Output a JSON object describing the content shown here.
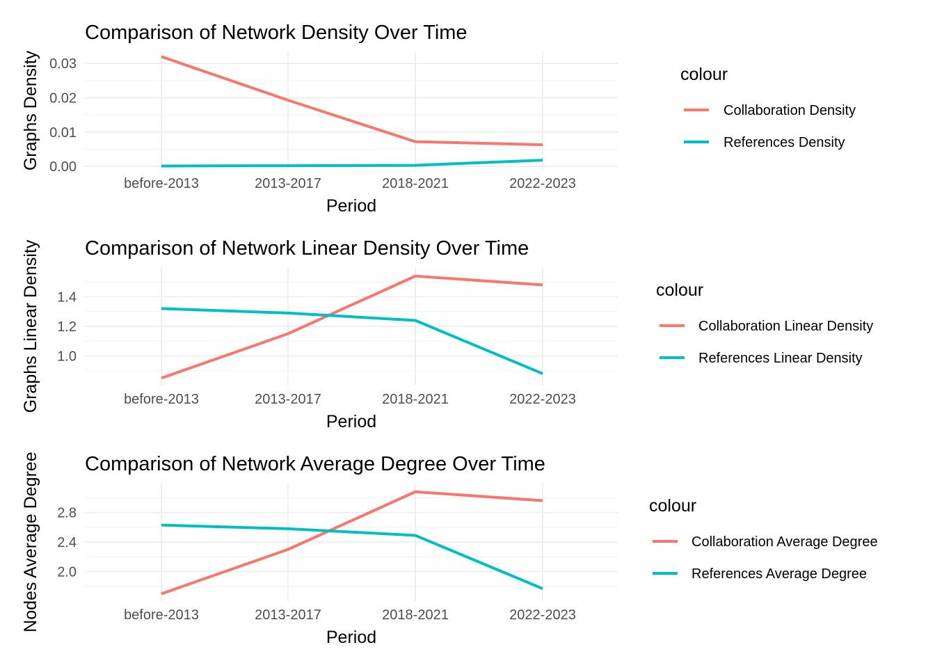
{
  "chart_data": [
    {
      "type": "line",
      "title": "Comparison of Network Density Over Time",
      "xlabel": "Period",
      "ylabel": "Graphs Density",
      "categories": [
        "before-2013",
        "2013-2017",
        "2018-2021",
        "2022-2023"
      ],
      "ylim": [
        -0.001,
        0.0335
      ],
      "yticks": [
        0.0,
        0.01,
        0.02,
        0.03
      ],
      "ytick_labels": [
        "0.00",
        "0.01",
        "0.02",
        "0.03"
      ],
      "grid": true,
      "legend_title": "colour",
      "legend_position": "right",
      "series": [
        {
          "name": "Collaboration Density",
          "color": "#F8766D",
          "values": [
            0.032,
            0.0193,
            0.0072,
            0.0063
          ]
        },
        {
          "name": "References Density",
          "color": "#00BFC4",
          "values": [
            0.0001,
            0.0002,
            0.0003,
            0.0018
          ]
        }
      ]
    },
    {
      "type": "line",
      "title": "Comparison of Network Linear Density Over Time",
      "xlabel": "Period",
      "ylabel": "Graphs Linear Density",
      "categories": [
        "before-2013",
        "2013-2017",
        "2018-2021",
        "2022-2023"
      ],
      "ylim": [
        0.8,
        1.6
      ],
      "yticks": [
        1.0,
        1.2,
        1.4
      ],
      "ytick_labels": [
        "1.0",
        "1.2",
        "1.4"
      ],
      "grid": true,
      "legend_title": "colour",
      "legend_position": "right",
      "series": [
        {
          "name": "Collaboration Linear Density",
          "color": "#F8766D",
          "values": [
            0.85,
            1.15,
            1.54,
            1.48
          ]
        },
        {
          "name": "References Linear Density",
          "color": "#00BFC4",
          "values": [
            1.32,
            1.29,
            1.24,
            0.88
          ]
        }
      ]
    },
    {
      "type": "line",
      "title": "Comparison of Network Average Degree Over Time",
      "xlabel": "Period",
      "ylabel": "Nodes Average Degree",
      "categories": [
        "before-2013",
        "2013-2017",
        "2018-2021",
        "2022-2023"
      ],
      "ylim": [
        1.6,
        3.2
      ],
      "yticks": [
        2.0,
        2.4,
        2.8
      ],
      "ytick_labels": [
        "2.0",
        "2.4",
        "2.8"
      ],
      "grid": true,
      "legend_title": "colour",
      "legend_position": "right",
      "series": [
        {
          "name": "Collaboration Average Degree",
          "color": "#F8766D",
          "values": [
            1.7,
            2.3,
            3.08,
            2.96
          ]
        },
        {
          "name": "References Average Degree",
          "color": "#00BFC4",
          "values": [
            2.63,
            2.58,
            2.49,
            1.77
          ]
        }
      ]
    }
  ]
}
